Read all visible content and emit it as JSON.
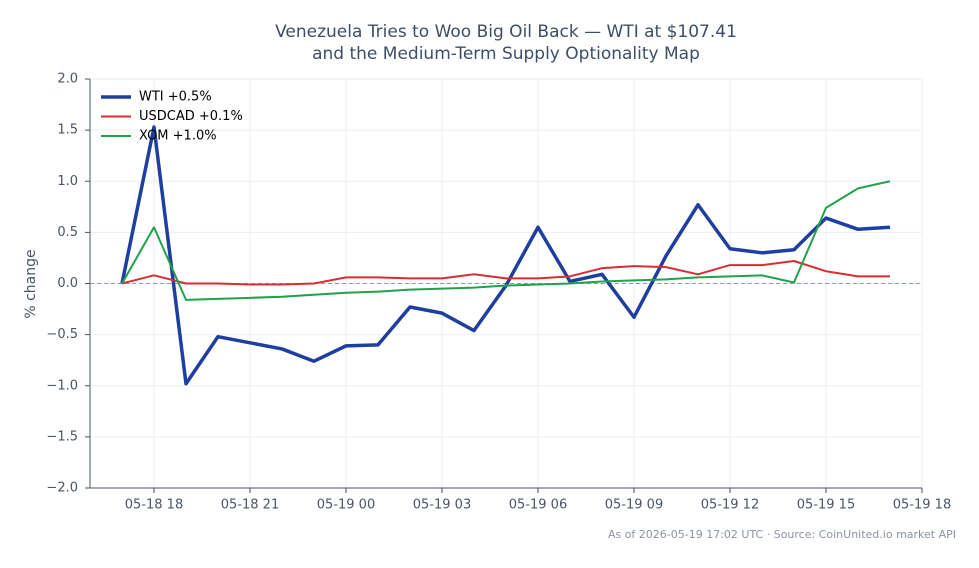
{
  "chart_data": {
    "type": "line",
    "title": "Venezuela Tries to Woo Big Oil Back — WTI at $107.41",
    "subtitle": "and the Medium-Term Supply Optionality Map",
    "ylabel": "% change",
    "footer": "As of 2026-05-19 17:02 UTC · Source: CoinUnited.io market API",
    "x": [
      "05-18 17",
      "05-18 18",
      "05-18 19",
      "05-18 20",
      "05-18 21",
      "05-18 22",
      "05-18 23",
      "05-19 00",
      "05-19 01",
      "05-19 02",
      "05-19 03",
      "05-19 04",
      "05-19 05",
      "05-19 06",
      "05-19 07",
      "05-19 08",
      "05-19 09",
      "05-19 10",
      "05-19 11",
      "05-19 12",
      "05-19 13",
      "05-19 14",
      "05-19 15",
      "05-19 16",
      "05-19 17"
    ],
    "series": [
      {
        "name": "WTI +0.5%",
        "color": "#1f3fa0",
        "width": 3.5,
        "values": [
          0,
          1.53,
          -0.98,
          -0.52,
          -0.58,
          -0.64,
          -0.76,
          -0.61,
          -0.6,
          -0.23,
          -0.29,
          -0.46,
          -0.02,
          0.55,
          0.02,
          0.09,
          -0.33,
          0.27,
          0.77,
          0.34,
          0.3,
          0.33,
          0.64,
          0.53,
          0.55
        ]
      },
      {
        "name": "USDCAD +0.1%",
        "color": "#d62f2f",
        "width": 2,
        "values": [
          0,
          0.08,
          0.0,
          0.0,
          -0.01,
          -0.01,
          0.0,
          0.06,
          0.06,
          0.05,
          0.05,
          0.09,
          0.05,
          0.05,
          0.07,
          0.15,
          0.17,
          0.16,
          0.09,
          0.18,
          0.18,
          0.22,
          0.12,
          0.07,
          0.07
        ]
      },
      {
        "name": "XOM +1.0%",
        "color": "#22a04b",
        "width": 2,
        "values": [
          0,
          0.55,
          -0.16,
          -0.15,
          -0.14,
          -0.13,
          -0.11,
          -0.09,
          -0.08,
          -0.06,
          -0.05,
          -0.04,
          -0.02,
          -0.01,
          0.0,
          0.02,
          0.03,
          0.04,
          0.06,
          0.07,
          0.08,
          0.01,
          0.74,
          0.93,
          1.0
        ]
      }
    ],
    "xlim": [
      "05-18 16",
      "05-19 18"
    ],
    "xticks": [
      "05-18 18",
      "05-18 21",
      "05-19 00",
      "05-19 03",
      "05-19 06",
      "05-19 09",
      "05-19 12",
      "05-19 15",
      "05-19 18"
    ],
    "ylim": [
      -2,
      2
    ],
    "yticks": [
      {
        "value": -2,
        "label": "−2.0"
      },
      {
        "value": -1.5,
        "label": "−1.5"
      },
      {
        "value": -1,
        "label": "−1.0"
      },
      {
        "value": -0.5,
        "label": "−0.5"
      },
      {
        "value": 0,
        "label": "0.0"
      },
      {
        "value": 0.5,
        "label": "0.5"
      },
      {
        "value": 1,
        "label": "1.0"
      },
      {
        "value": 1.5,
        "label": "1.5"
      },
      {
        "value": 2,
        "label": "2.0"
      }
    ],
    "reference_line": 0,
    "grid": true,
    "legend": "upper-left"
  }
}
